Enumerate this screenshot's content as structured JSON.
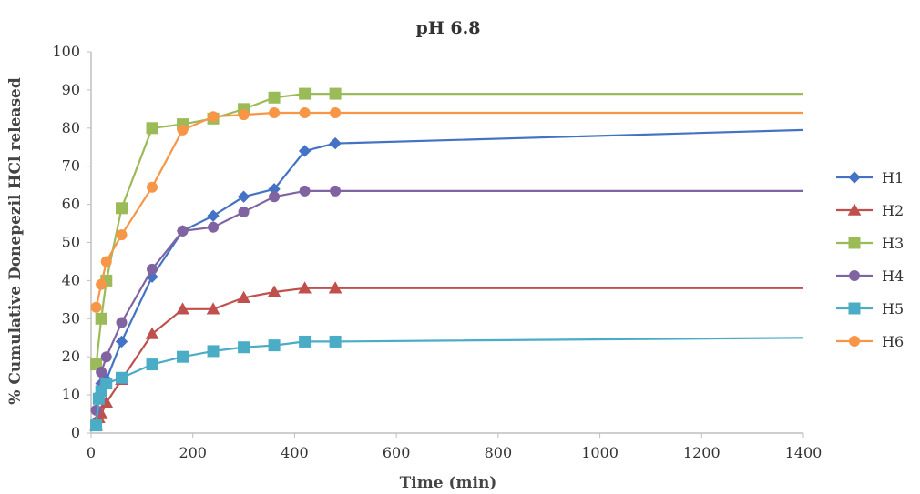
{
  "chart_data": {
    "type": "line",
    "title": "pH 6.8",
    "xlabel": "Time (min)",
    "ylabel": "% Cumulative Donepezil HCl released",
    "xlim": [
      0,
      1400
    ],
    "ylim": [
      0,
      100
    ],
    "x_ticks": [
      "0",
      "200",
      "400",
      "600",
      "800",
      "1000",
      "1200",
      "1400"
    ],
    "y_ticks": [
      "0",
      "10",
      "20",
      "30",
      "40",
      "50",
      "60",
      "70",
      "80",
      "90",
      "100"
    ],
    "grid": false,
    "legend_position": "right",
    "series": [
      {
        "name": "H1",
        "color": "#4472C4",
        "marker": "diamond",
        "x": [
          10,
          15,
          20,
          30,
          60,
          120,
          180,
          240,
          300,
          360,
          420,
          480,
          1400
        ],
        "y": [
          3,
          10,
          13,
          14,
          24,
          41,
          53,
          57,
          62,
          64,
          74,
          76,
          79.5
        ],
        "markers_upto": 480
      },
      {
        "name": "H2",
        "color": "#C0504D",
        "marker": "triangle",
        "x": [
          10,
          15,
          20,
          30,
          60,
          120,
          180,
          240,
          300,
          360,
          420,
          480,
          1400
        ],
        "y": [
          2,
          4,
          5,
          8,
          14,
          26,
          32.5,
          32.5,
          35.5,
          37,
          38,
          38,
          38
        ],
        "markers_upto": 480
      },
      {
        "name": "H3",
        "color": "#9BBB59",
        "marker": "square",
        "x": [
          10,
          20,
          30,
          60,
          120,
          180,
          240,
          300,
          360,
          420,
          480,
          1400
        ],
        "y": [
          18,
          30,
          40,
          59,
          80,
          81,
          82.5,
          85,
          88,
          89,
          89,
          89
        ],
        "markers_upto": 480
      },
      {
        "name": "H4",
        "color": "#8064A2",
        "marker": "circle",
        "x": [
          10,
          20,
          30,
          60,
          120,
          180,
          240,
          300,
          360,
          420,
          480,
          1400
        ],
        "y": [
          6,
          16,
          20,
          29,
          43,
          53,
          54,
          58,
          62,
          63.5,
          63.5,
          63.5
        ],
        "markers_upto": 480
      },
      {
        "name": "H5",
        "color": "#4BACC6",
        "marker": "square",
        "x": [
          10,
          15,
          20,
          30,
          60,
          120,
          180,
          240,
          300,
          360,
          420,
          480,
          1400
        ],
        "y": [
          2,
          9,
          11,
          13,
          14.5,
          18,
          20,
          21.5,
          22.5,
          23,
          24,
          24,
          25
        ],
        "markers_upto": 480
      },
      {
        "name": "H6",
        "color": "#F79646",
        "marker": "circle",
        "x": [
          10,
          20,
          30,
          60,
          120,
          180,
          240,
          300,
          360,
          420,
          480,
          1400
        ],
        "y": [
          33,
          39,
          45,
          52,
          64.5,
          79.5,
          83,
          83.5,
          84,
          84,
          84,
          84
        ],
        "markers_upto": 480
      }
    ]
  }
}
